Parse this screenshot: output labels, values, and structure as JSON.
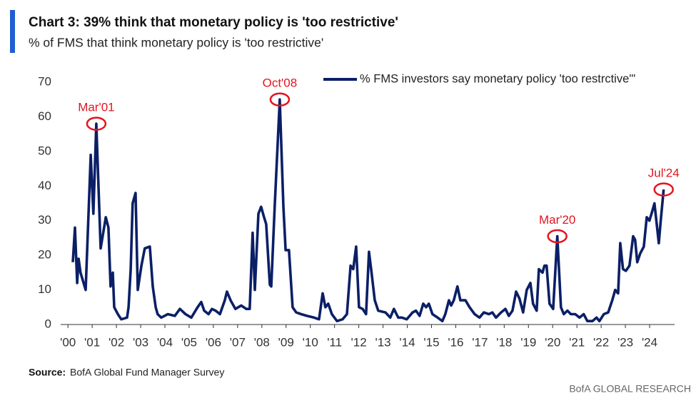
{
  "chart_data": {
    "type": "line",
    "title": "Chart 3: 39% think that monetary policy is 'too restrictive'",
    "subtitle": "% of FMS that think monetary policy is 'too restrictive'",
    "source_label": "Source:",
    "source": "BofA Global Fund Manager Survey",
    "brand": "BofA GLOBAL RESEARCH",
    "xlim": [
      1999.7,
      2025.03
    ],
    "xticks": [
      {
        "value": 2000,
        "label": "'00"
      },
      {
        "value": 2001,
        "label": "'01"
      },
      {
        "value": 2002,
        "label": "'02"
      },
      {
        "value": 2003,
        "label": "'03"
      },
      {
        "value": 2004,
        "label": "'04"
      },
      {
        "value": 2005,
        "label": "'05"
      },
      {
        "value": 2006,
        "label": "'06"
      },
      {
        "value": 2007,
        "label": "'07"
      },
      {
        "value": 2008,
        "label": "'08"
      },
      {
        "value": 2009,
        "label": "'09"
      },
      {
        "value": 2010,
        "label": "'10"
      },
      {
        "value": 2011,
        "label": "'11"
      },
      {
        "value": 2012,
        "label": "'12"
      },
      {
        "value": 2013,
        "label": "'13"
      },
      {
        "value": 2014,
        "label": "'14"
      },
      {
        "value": 2015,
        "label": "'15"
      },
      {
        "value": 2016,
        "label": "'16"
      },
      {
        "value": 2017,
        "label": "'17"
      },
      {
        "value": 2018,
        "label": "'18"
      },
      {
        "value": 2019,
        "label": "'19"
      },
      {
        "value": 2020,
        "label": "'20"
      },
      {
        "value": 2021,
        "label": "'21"
      },
      {
        "value": 2022,
        "label": "'22"
      },
      {
        "value": 2023,
        "label": "'23"
      },
      {
        "value": 2024,
        "label": "'24"
      }
    ],
    "ylim": [
      0,
      70
    ],
    "yticks": [
      0,
      10,
      20,
      30,
      40,
      50,
      60,
      70
    ],
    "grid": false,
    "legend": "top-right",
    "x": [
      2000.2,
      2000.29,
      2000.38,
      2000.44,
      2000.52,
      2000.73,
      2000.94,
      2001.05,
      2001.17,
      2001.35,
      2001.56,
      2001.67,
      2001.76,
      2001.85,
      2001.91,
      2002.06,
      2002.2,
      2002.44,
      2002.5,
      2002.59,
      2002.67,
      2002.79,
      2002.88,
      2003.03,
      2003.17,
      2003.38,
      2003.5,
      2003.62,
      2003.7,
      2003.85,
      2004.12,
      2004.41,
      2004.62,
      2004.85,
      2005.09,
      2005.35,
      2005.5,
      2005.62,
      2005.8,
      2005.94,
      2006.09,
      2006.27,
      2006.47,
      2006.56,
      2006.71,
      2006.91,
      2007.15,
      2007.36,
      2007.5,
      2007.62,
      2007.71,
      2007.86,
      2007.97,
      2008.09,
      2008.18,
      2008.33,
      2008.39,
      2008.53,
      2008.74,
      2008.89,
      2008.98,
      2009.12,
      2009.27,
      2009.42,
      2009.62,
      2009.86,
      2010.15,
      2010.36,
      2010.51,
      2010.62,
      2010.74,
      2010.89,
      2011.1,
      2011.33,
      2011.51,
      2011.66,
      2011.77,
      2011.89,
      2012.01,
      2012.16,
      2012.3,
      2012.42,
      2012.51,
      2012.66,
      2012.8,
      2013.1,
      2013.3,
      2013.45,
      2013.63,
      2013.78,
      2013.98,
      2014.22,
      2014.36,
      2014.51,
      2014.66,
      2014.78,
      2014.89,
      2015.04,
      2015.25,
      2015.45,
      2015.57,
      2015.72,
      2015.81,
      2015.92,
      2016.07,
      2016.19,
      2016.4,
      2016.57,
      2016.78,
      2016.98,
      2017.16,
      2017.37,
      2017.51,
      2017.66,
      2017.87,
      2018.05,
      2018.19,
      2018.34,
      2018.49,
      2018.63,
      2018.78,
      2018.93,
      2019.08,
      2019.19,
      2019.34,
      2019.43,
      2019.58,
      2019.66,
      2019.75,
      2019.87,
      2020.02,
      2020.19,
      2020.34,
      2020.46,
      2020.61,
      2020.75,
      2020.93,
      2021.11,
      2021.28,
      2021.43,
      2021.64,
      2021.81,
      2021.93,
      2022.11,
      2022.29,
      2022.46,
      2022.58,
      2022.7,
      2022.79,
      2022.9,
      2023.02,
      2023.17,
      2023.32,
      2023.4,
      2023.49,
      2023.61,
      2023.76,
      2023.88,
      2023.99,
      2024.08,
      2024.2,
      2024.38,
      2024.46,
      2024.58
    ],
    "series": [
      {
        "name": "% FMS investors say monetary policy 'too restrctive'\"",
        "color": "#0b1f66",
        "values": [
          18,
          28,
          12,
          19,
          15,
          10,
          49,
          32,
          58,
          22,
          31,
          28,
          11,
          15,
          5,
          3,
          1.5,
          2,
          5,
          16,
          35,
          38,
          10,
          17,
          22,
          22.5,
          11,
          5,
          3,
          2,
          3,
          2.5,
          4.5,
          3,
          2,
          5,
          6.5,
          4,
          3,
          4.5,
          4,
          3,
          7,
          9.5,
          7,
          4.5,
          5.5,
          4.5,
          4.5,
          26.5,
          10,
          32,
          34,
          31,
          29,
          11.5,
          11,
          34,
          65,
          34,
          21.5,
          21.5,
          5,
          3.5,
          3,
          2.5,
          2,
          1.5,
          9,
          5,
          6,
          3,
          1,
          1.5,
          3,
          17,
          16,
          22.5,
          5,
          4.5,
          3,
          21,
          16,
          7,
          4,
          3.5,
          2,
          4.5,
          2,
          2,
          1.5,
          3.5,
          4,
          2.5,
          6,
          5,
          6,
          3,
          2,
          1,
          3,
          7,
          5.5,
          7,
          11,
          7,
          7,
          5,
          3,
          2,
          3.5,
          3,
          3.5,
          2,
          3.5,
          4.5,
          2.5,
          4,
          9.5,
          7.5,
          3.5,
          10,
          12,
          6,
          4,
          16,
          15,
          17,
          17,
          6,
          4.5,
          25.5,
          5,
          3,
          4,
          3,
          3,
          2,
          3,
          1,
          1,
          2,
          1,
          3,
          3.5,
          7,
          10,
          9,
          23.5,
          16,
          15.5,
          17,
          25.5,
          24.5,
          18,
          20.5,
          22.5,
          31,
          30,
          32,
          35,
          23.5,
          30,
          39
        ]
      }
    ],
    "annotations": [
      {
        "text": "Mar'01",
        "x": 2001.17,
        "y": 58,
        "color": "#e3141e"
      },
      {
        "text": "Oct'08",
        "x": 2008.74,
        "y": 65,
        "color": "#e3141e"
      },
      {
        "text": "Mar'20",
        "x": 2020.19,
        "y": 25.5,
        "color": "#e3141e"
      },
      {
        "text": "Jul'24",
        "x": 2024.58,
        "y": 39,
        "color": "#e3141e"
      }
    ]
  }
}
